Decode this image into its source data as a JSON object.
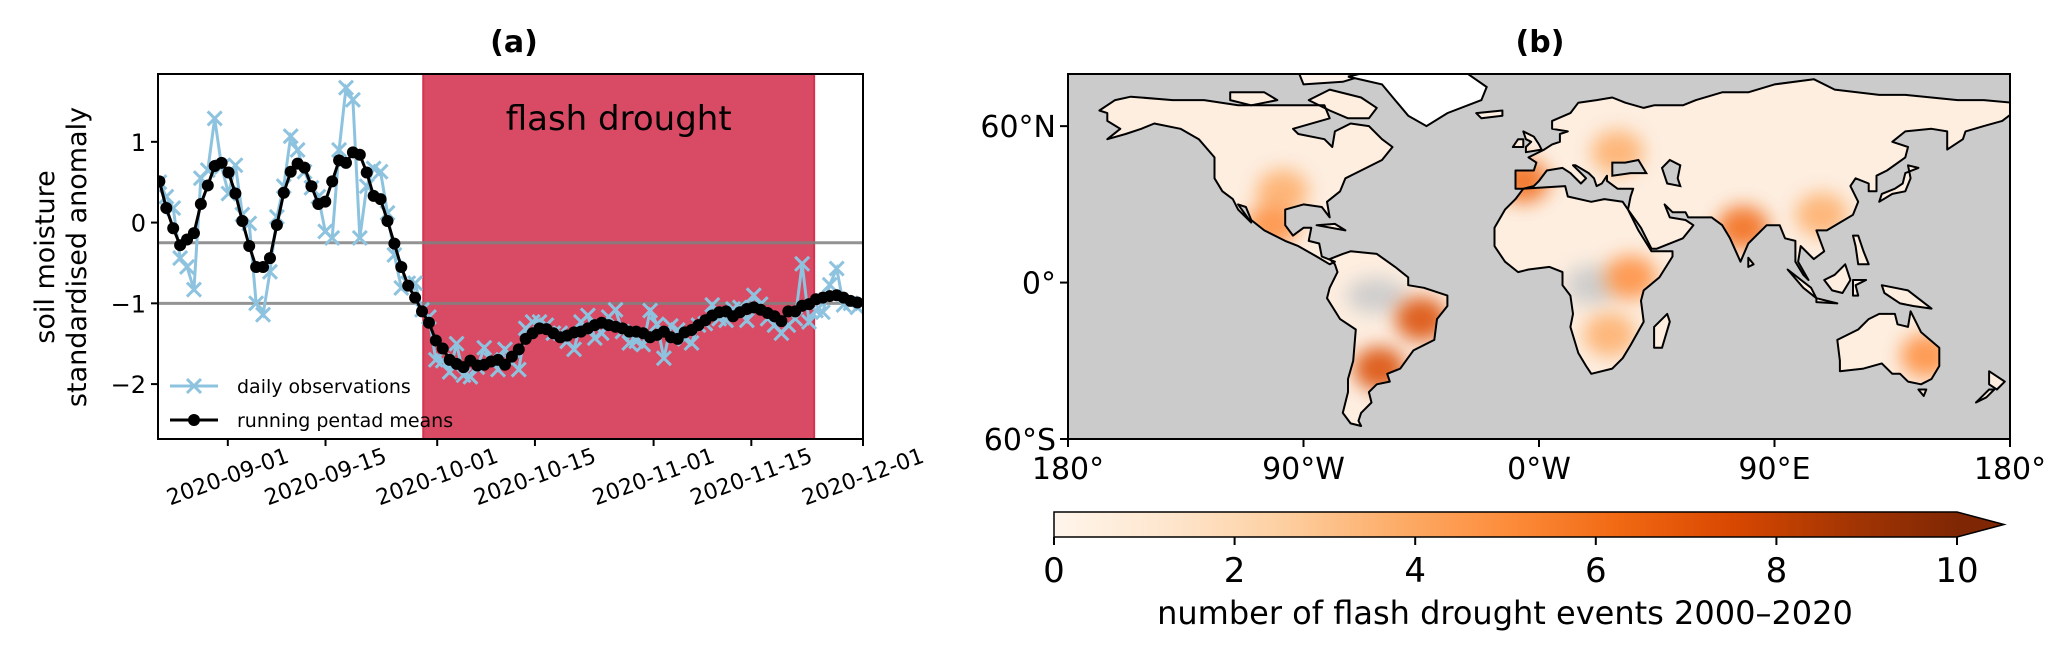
{
  "chart_data": [
    {
      "type": "line",
      "title": "(a)",
      "ylabel_lines": [
        "soil moisture",
        "standardised anomaly"
      ],
      "xlabel": "",
      "xlim": [
        "2020-08-22",
        "2020-12-01"
      ],
      "ylim": [
        -2.68,
        1.84
      ],
      "yticks": [
        1,
        0,
        -1,
        -2
      ],
      "ytick_labels": [
        "1",
        "0",
        "−1",
        "−2"
      ],
      "xticks": [
        "2020-09-01",
        "2020-09-15",
        "2020-10-01",
        "2020-10-15",
        "2020-11-01",
        "2020-11-15",
        "2020-12-01"
      ],
      "hlines": [
        -0.25,
        -1.0
      ],
      "hline_color": "#808080",
      "shaded_region": {
        "start": "2020-09-29",
        "end": "2020-11-24",
        "label": "flash drought",
        "color": "#d4324f",
        "label_color": "#7a1020"
      },
      "x_first": "2020-08-22",
      "x_last": "2020-11-30",
      "series": [
        {
          "name": "daily observations",
          "color": "#8ec3df",
          "marker": "x",
          "values": [
            0.5,
            0.32,
            0.18,
            -0.44,
            -0.55,
            -0.83,
            0.55,
            0.65,
            1.29,
            0.69,
            0.36,
            0.71,
            0.1,
            -0.01,
            -1.0,
            -1.14,
            -0.61,
            0.07,
            0.45,
            1.07,
            0.9,
            0.63,
            0.43,
            0.32,
            -0.11,
            -0.19,
            0.9,
            1.67,
            1.52,
            -0.19,
            0.45,
            0.67,
            0.63,
            0.12,
            -0.4,
            -0.81,
            -0.75,
            -0.75,
            -1.08,
            -1.17,
            -1.7,
            -1.71,
            -1.85,
            -1.5,
            -1.89,
            -1.91,
            -1.79,
            -1.55,
            -1.7,
            -1.82,
            -1.57,
            -1.73,
            -1.82,
            -1.31,
            -1.23,
            -1.23,
            -1.27,
            -1.37,
            -1.37,
            -1.47,
            -1.57,
            -1.23,
            -1.15,
            -1.43,
            -1.37,
            -1.17,
            -1.08,
            -1.35,
            -1.49,
            -1.47,
            -1.51,
            -1.09,
            -1.26,
            -1.68,
            -1.28,
            -1.33,
            -1.44,
            -1.49,
            -1.27,
            -1.25,
            -1.02,
            -1.19,
            -1.21,
            -1.07,
            -1.05,
            -1.21,
            -0.9,
            -1.01,
            -1.19,
            -1.27,
            -1.37,
            -1.27,
            -1.19,
            -0.51,
            -1.23,
            -1.09,
            -1.11,
            -0.77,
            -0.57,
            -1.02,
            -1.0,
            -1.05
          ]
        },
        {
          "name": "running pentad means",
          "color": "#000000",
          "marker": "o",
          "values": [
            0.51,
            0.18,
            -0.07,
            -0.28,
            -0.21,
            -0.13,
            0.23,
            0.46,
            0.7,
            0.74,
            0.62,
            0.36,
            0.02,
            -0.29,
            -0.55,
            -0.55,
            -0.44,
            -0.03,
            0.37,
            0.63,
            0.73,
            0.68,
            0.45,
            0.23,
            0.26,
            0.51,
            0.77,
            0.74,
            0.87,
            0.84,
            0.62,
            0.33,
            0.29,
            0.02,
            -0.26,
            -0.55,
            -0.78,
            -0.93,
            -1.1,
            -1.24,
            -1.46,
            -1.56,
            -1.7,
            -1.75,
            -1.79,
            -1.71,
            -1.77,
            -1.76,
            -1.72,
            -1.7,
            -1.76,
            -1.66,
            -1.57,
            -1.44,
            -1.37,
            -1.31,
            -1.32,
            -1.37,
            -1.42,
            -1.4,
            -1.36,
            -1.35,
            -1.31,
            -1.27,
            -1.24,
            -1.27,
            -1.29,
            -1.31,
            -1.35,
            -1.35,
            -1.37,
            -1.42,
            -1.39,
            -1.35,
            -1.42,
            -1.44,
            -1.36,
            -1.33,
            -1.27,
            -1.21,
            -1.15,
            -1.11,
            -1.1,
            -1.16,
            -1.11,
            -1.07,
            -1.05,
            -1.08,
            -1.12,
            -1.16,
            -1.22,
            -1.1,
            -1.1,
            -1.03,
            -1.01,
            -0.95,
            -0.93,
            -0.91,
            -0.9,
            -0.93,
            -0.97,
            -0.99
          ]
        }
      ],
      "legend": {
        "position": "lower-left",
        "entries": [
          "daily observations",
          "running pentad means"
        ]
      }
    },
    {
      "type": "heatmap",
      "subtype": "map",
      "title": "(b)",
      "lon_range": [
        -180,
        180
      ],
      "lat_range": [
        -60,
        80
      ],
      "xticks": [
        -180,
        -90,
        0,
        90,
        180
      ],
      "xtick_labels": [
        "180°",
        "90°W",
        "0°W",
        "90°E",
        "180°"
      ],
      "yticks": [
        60,
        0,
        -60
      ],
      "ytick_labels": [
        "60°N",
        "0°",
        "60°S"
      ],
      "ocean_color": "#cbcbcb",
      "hotspots": [
        {
          "region": "eastern Brazil",
          "lon": -45,
          "lat": -14,
          "value": 7
        },
        {
          "region": "Argentina",
          "lon": -61,
          "lat": -33,
          "value": 7
        },
        {
          "region": "India",
          "lon": 78,
          "lat": 21,
          "value": 6
        },
        {
          "region": "East Africa",
          "lon": 35,
          "lat": 2,
          "value": 5
        },
        {
          "region": "southern Africa",
          "lon": 27,
          "lat": -20,
          "value": 4
        },
        {
          "region": "Iberia",
          "lon": -6,
          "lat": 39,
          "value": 6
        },
        {
          "region": "US Great Plains",
          "lon": -98,
          "lat": 35,
          "value": 4
        },
        {
          "region": "Mexico",
          "lon": -102,
          "lat": 22,
          "value": 5
        },
        {
          "region": "eastern Australia",
          "lon": 148,
          "lat": -28,
          "value": 5
        },
        {
          "region": "eastern Europe",
          "lon": 30,
          "lat": 50,
          "value": 4
        },
        {
          "region": "southern China",
          "lon": 108,
          "lat": 26,
          "value": 4
        }
      ],
      "colorbar": {
        "label": "number of flash drought events 2000–2020",
        "ticks": [
          0,
          2,
          4,
          6,
          8,
          10
        ],
        "tick_labels": [
          "0",
          "2",
          "4",
          "6",
          "8",
          "10"
        ],
        "range": [
          0,
          10
        ],
        "extend": "max",
        "colors": [
          "#fff5eb",
          "#fee6ce",
          "#fdd0a2",
          "#fdae6b",
          "#fd8d3c",
          "#f16913",
          "#d94801",
          "#a63603",
          "#7f2704"
        ]
      }
    }
  ]
}
